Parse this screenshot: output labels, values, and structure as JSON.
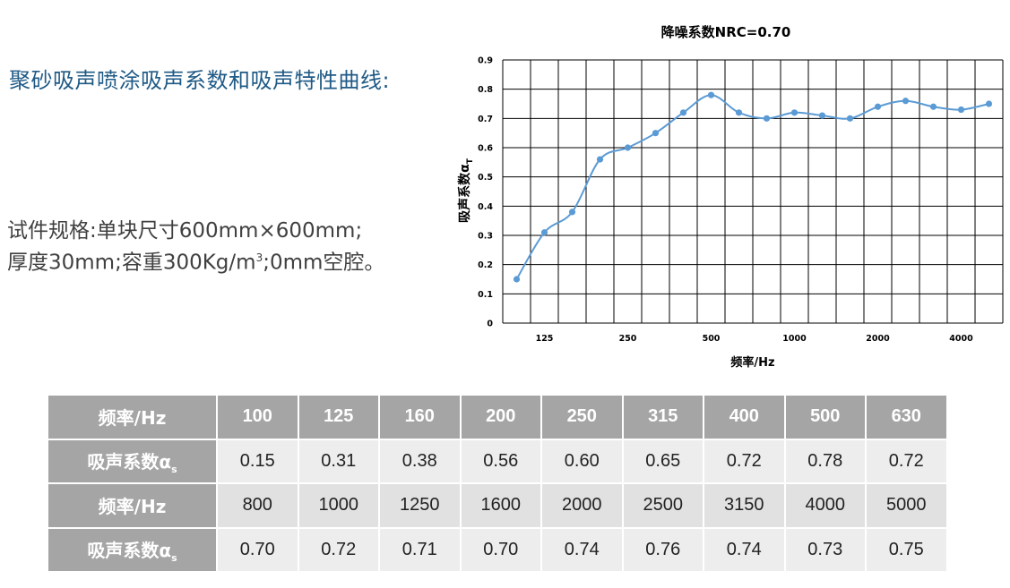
{
  "page": {
    "title": "聚砂吸声喷涂吸声系数和吸声特性曲线:",
    "spec_line1": "试件规格:单块尺寸600mm×600mm;",
    "spec_line2_a": "厚度30mm;容重300Kg/m",
    "spec_line2_sup": "3",
    "spec_line2_b": ";0mm空腔。"
  },
  "chart_data": {
    "type": "line",
    "title": "降噪系数NRC=0.70",
    "xlabel": "频率/Hz",
    "ylabel": "吸声系数α",
    "ylabel_sub": "T",
    "x": [
      "100",
      "125",
      "160",
      "200",
      "250",
      "315",
      "400",
      "500",
      "630",
      "800",
      "1000",
      "1250",
      "1600",
      "2000",
      "2500",
      "3150",
      "4000",
      "5000"
    ],
    "x_tick_labels": [
      "125",
      "250",
      "500",
      "1000",
      "2000",
      "4000"
    ],
    "values": [
      0.15,
      0.31,
      0.38,
      0.56,
      0.6,
      0.65,
      0.72,
      0.78,
      0.72,
      0.7,
      0.72,
      0.71,
      0.7,
      0.74,
      0.76,
      0.74,
      0.73,
      0.75
    ],
    "y_ticks": [
      "0",
      "0.1",
      "0.2",
      "0.3",
      "0.4",
      "0.5",
      "0.6",
      "0.7",
      "0.8",
      "0.9"
    ],
    "ylim": [
      0,
      0.9
    ],
    "grid": true,
    "color": "#5b9bd5"
  },
  "table": {
    "freq_label": "频率/Hz",
    "coef_label": "吸声系数α",
    "coef_sub": "s",
    "row1_freq": [
      "100",
      "125",
      "160",
      "200",
      "250",
      "315",
      "400",
      "500",
      "630"
    ],
    "row1_coef": [
      "0.15",
      "0.31",
      "0.38",
      "0.56",
      "0.60",
      "0.65",
      "0.72",
      "0.78",
      "0.72"
    ],
    "row2_freq": [
      "800",
      "1000",
      "1250",
      "1600",
      "2000",
      "2500",
      "3150",
      "4000",
      "5000"
    ],
    "row2_coef": [
      "0.70",
      "0.72",
      "0.71",
      "0.70",
      "0.74",
      "0.76",
      "0.74",
      "0.73",
      "0.75"
    ]
  }
}
